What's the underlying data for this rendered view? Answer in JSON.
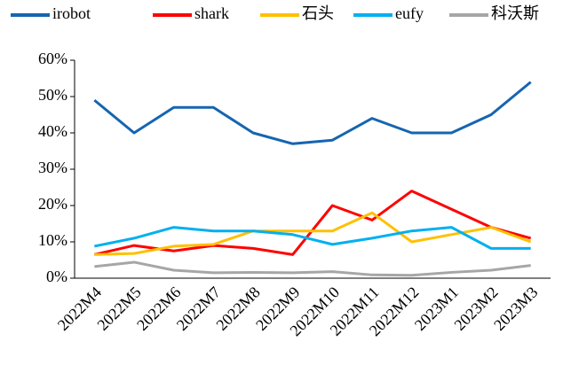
{
  "chart_data": {
    "type": "line",
    "categories": [
      "2022M4",
      "2022M5",
      "2022M6",
      "2022M7",
      "2022M8",
      "2022M9",
      "2022M10",
      "2022M11",
      "2022M12",
      "2023M1",
      "2023M2",
      "2023M3"
    ],
    "series": [
      {
        "name": "irobot",
        "color": "#1565b0",
        "values": [
          49,
          40,
          47,
          47,
          40,
          37,
          38,
          44,
          40,
          40,
          45,
          54
        ]
      },
      {
        "name": "shark",
        "color": "#ff0000",
        "values": [
          6.5,
          9,
          7.5,
          9,
          8.2,
          6.5,
          20,
          16,
          24,
          19,
          14,
          11
        ]
      },
      {
        "name": "石头",
        "color": "#ffc000",
        "values": [
          6.5,
          6.8,
          8.8,
          9.3,
          13,
          13,
          13,
          18,
          10,
          12,
          14,
          10
        ]
      },
      {
        "name": "eufy",
        "color": "#00b0f0",
        "values": [
          8.8,
          11,
          14,
          13,
          13,
          12,
          9.3,
          11,
          13,
          14,
          8.2,
          8.2
        ]
      },
      {
        "name": "科沃斯",
        "color": "#a6a6a6",
        "values": [
          3.2,
          4.4,
          2.2,
          1.5,
          1.6,
          1.5,
          1.8,
          0.9,
          0.8,
          1.6,
          2.2,
          3.5
        ]
      }
    ],
    "ylim": [
      0,
      60
    ],
    "yticks": [
      {
        "value": 0,
        "label": "0%"
      },
      {
        "value": 10,
        "label": "10%"
      },
      {
        "value": 20,
        "label": "20%"
      },
      {
        "value": 30,
        "label": "30%"
      },
      {
        "value": 40,
        "label": "40%"
      },
      {
        "value": 50,
        "label": "50%"
      },
      {
        "value": 60,
        "label": "60%"
      }
    ],
    "legend": "top"
  }
}
